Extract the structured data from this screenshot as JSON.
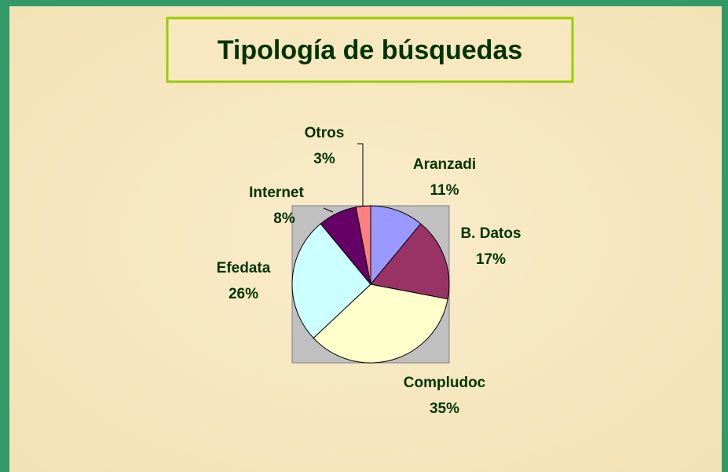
{
  "chart_data": {
    "type": "pie",
    "title": "Tipología de búsquedas",
    "categories": [
      "Aranzadi",
      "B. Datos",
      "Compludoc",
      "Efedata",
      "Internet",
      "Otros"
    ],
    "values": [
      11,
      17,
      35,
      26,
      8,
      3
    ],
    "value_labels": [
      "11%",
      "17%",
      "35%",
      "26%",
      "8%",
      "3%"
    ],
    "colors": [
      "#9999ff",
      "#993366",
      "#ffffcc",
      "#ccffff",
      "#660066",
      "#ff8080"
    ]
  }
}
